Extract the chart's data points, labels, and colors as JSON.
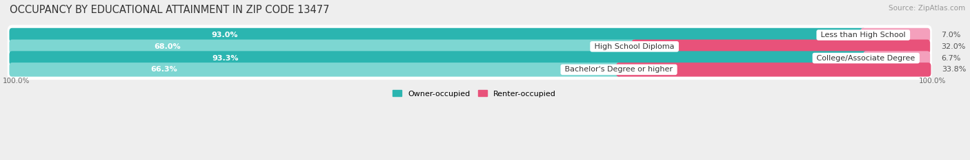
{
  "title": "OCCUPANCY BY EDUCATIONAL ATTAINMENT IN ZIP CODE 13477",
  "source": "Source: ZipAtlas.com",
  "categories": [
    "Less than High School",
    "High School Diploma",
    "College/Associate Degree",
    "Bachelor's Degree or higher"
  ],
  "owner_values": [
    93.0,
    68.0,
    93.3,
    66.3
  ],
  "renter_values": [
    7.0,
    32.0,
    6.7,
    33.8
  ],
  "owner_color_dark": "#2BB5B0",
  "owner_color_light": "#7DD6D2",
  "renter_color_dark": "#E8527A",
  "renter_color_light": "#F4A0BC",
  "owner_label": "Owner-occupied",
  "renter_label": "Renter-occupied",
  "bg_color": "#eeeeee",
  "row_bg_color": "#e0e0e0",
  "title_fontsize": 10.5,
  "source_fontsize": 7.5,
  "bar_label_fontsize": 8,
  "cat_label_fontsize": 8,
  "axis_label_left": "100.0%",
  "axis_label_right": "100.0%",
  "legend_fontsize": 8
}
